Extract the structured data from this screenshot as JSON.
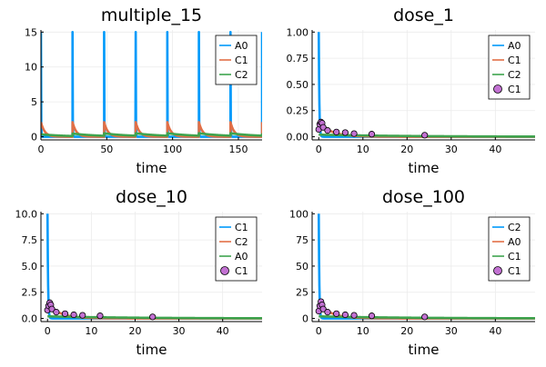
{
  "colors": {
    "blue": "#009AFA",
    "orange": "#E26F46",
    "green": "#3EA44E",
    "purple": "#C271D2",
    "grid": "#EBEBEB",
    "axis": "#000000"
  },
  "chart_data": [
    {
      "type": "line",
      "title": "multiple_15",
      "xlabel": "time",
      "ylabel": "",
      "xlim": [
        0,
        168
      ],
      "ylim": [
        -0.45,
        15.3
      ],
      "xticks": [
        0,
        50,
        100,
        150
      ],
      "yticks": [
        0,
        5,
        10,
        15
      ],
      "grid": true,
      "legend_position": "top-right",
      "dose_interval": 24,
      "dose_times": [
        0,
        24,
        48,
        72,
        96,
        120,
        144,
        168
      ],
      "series": [
        {
          "name": "A0",
          "color": "blue",
          "kind": "line",
          "peak": 15,
          "decay": 8
        },
        {
          "name": "C1",
          "color": "orange",
          "kind": "line",
          "peak": 2.1,
          "decay": 0.35
        },
        {
          "name": "C2",
          "color": "green",
          "kind": "line",
          "peak": 0.35,
          "decay": 0.05
        }
      ]
    },
    {
      "type": "line",
      "title": "dose_1",
      "xlabel": "time",
      "ylabel": "",
      "xlim": [
        -1.5,
        49
      ],
      "ylim": [
        -0.03,
        1.02
      ],
      "xticks": [
        0,
        10,
        20,
        30,
        40
      ],
      "yticks": [
        0,
        0.25,
        0.5,
        0.75,
        1.0
      ],
      "grid": true,
      "legend_position": "top-right",
      "series": [
        {
          "name": "A0",
          "color": "blue",
          "kind": "line",
          "peak": 1.0,
          "decay": 8
        },
        {
          "name": "C1",
          "color": "orange",
          "kind": "line",
          "peak": 0.14,
          "decay": 0.35
        },
        {
          "name": "C2",
          "color": "green",
          "kind": "line",
          "peak": 0.02,
          "decay": 0.05
        },
        {
          "name": "C1",
          "color": "purple",
          "kind": "scatter",
          "x": [
            0,
            0.25,
            0.5,
            0.75,
            1,
            2,
            4,
            6,
            8,
            12,
            24
          ],
          "y": [
            0.07,
            0.12,
            0.14,
            0.13,
            0.09,
            0.06,
            0.045,
            0.04,
            0.03,
            0.025,
            0.015
          ]
        }
      ]
    },
    {
      "type": "line",
      "title": "dose_10",
      "xlabel": "time",
      "ylabel": "",
      "xlim": [
        -1.5,
        49
      ],
      "ylim": [
        -0.3,
        10.2
      ],
      "xticks": [
        0,
        10,
        20,
        30,
        40
      ],
      "yticks": [
        0,
        2.5,
        5.0,
        7.5,
        10.0
      ],
      "ytick_format": "fixed1",
      "grid": true,
      "legend_position": "top-right",
      "series": [
        {
          "name": "C1",
          "color": "blue",
          "kind": "line",
          "peak": 10.0,
          "decay": 8
        },
        {
          "name": "C2",
          "color": "orange",
          "kind": "line",
          "peak": 1.4,
          "decay": 0.35
        },
        {
          "name": "A0",
          "color": "green",
          "kind": "line",
          "peak": 0.2,
          "decay": 0.05
        },
        {
          "name": "C1",
          "color": "purple",
          "kind": "scatter",
          "x": [
            0,
            0.25,
            0.5,
            0.75,
            1,
            2,
            4,
            6,
            8,
            12,
            24
          ],
          "y": [
            0.8,
            1.2,
            1.5,
            1.3,
            0.9,
            0.6,
            0.45,
            0.35,
            0.3,
            0.25,
            0.15
          ]
        }
      ]
    },
    {
      "type": "line",
      "title": "dose_100",
      "xlabel": "time",
      "ylabel": "",
      "xlim": [
        -1.5,
        49
      ],
      "ylim": [
        -3,
        102
      ],
      "xticks": [
        0,
        10,
        20,
        30,
        40
      ],
      "yticks": [
        0,
        25,
        50,
        75,
        100
      ],
      "grid": true,
      "legend_position": "top-right",
      "series": [
        {
          "name": "C2",
          "color": "blue",
          "kind": "line",
          "peak": 100,
          "decay": 8
        },
        {
          "name": "A0",
          "color": "orange",
          "kind": "line",
          "peak": 14,
          "decay": 0.35
        },
        {
          "name": "C1",
          "color": "green",
          "kind": "line",
          "peak": 2,
          "decay": 0.05
        },
        {
          "name": "C1",
          "color": "purple",
          "kind": "scatter",
          "x": [
            0,
            0.25,
            0.5,
            0.75,
            1,
            2,
            4,
            6,
            8,
            12,
            24
          ],
          "y": [
            7,
            12,
            16,
            13,
            9,
            6,
            4.5,
            3.5,
            3,
            2.5,
            1.5
          ]
        }
      ]
    }
  ]
}
